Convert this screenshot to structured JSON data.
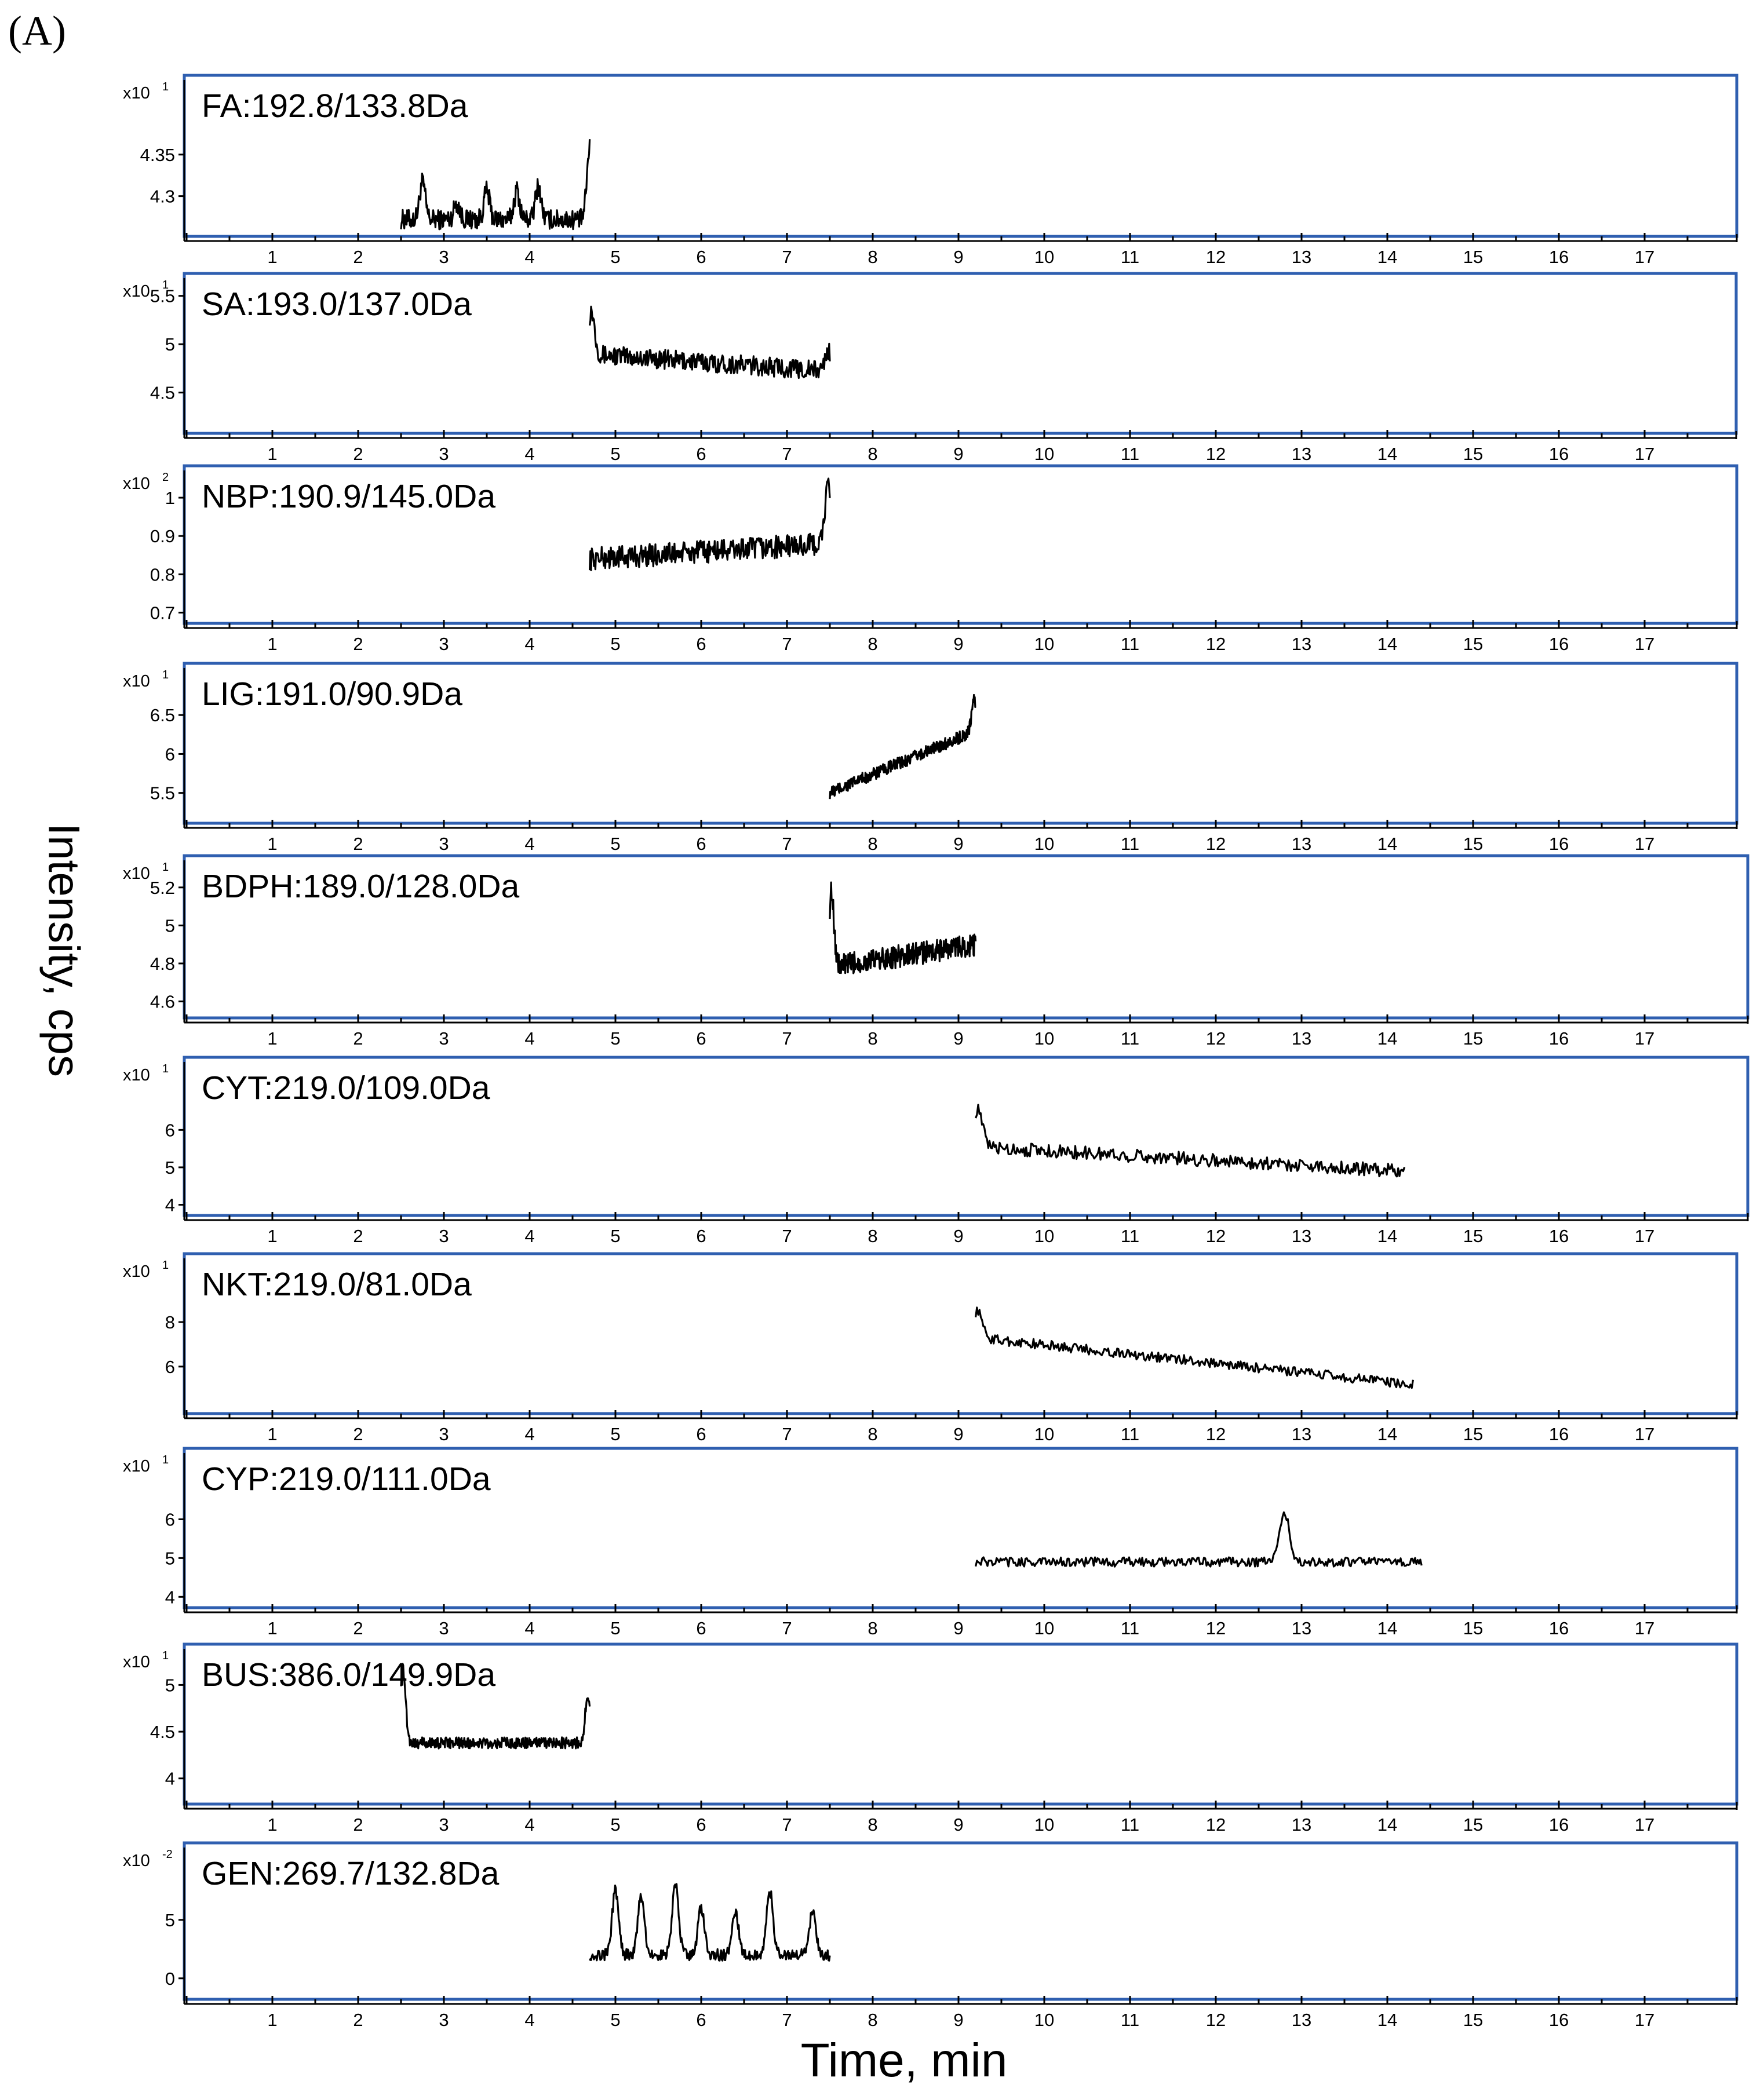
{
  "panel_label": "(A)",
  "y_axis_label": "Intensity, cps",
  "x_axis_label": "Time, min",
  "chart_data": [
    {
      "type": "line",
      "title": "FA:192.8/133.8Da",
      "scale_prefix": "x10",
      "scale_exp": "1",
      "ylim": [
        4.26,
        4.43
      ],
      "yticks": [
        "4.35",
        "4.3"
      ],
      "xlim": [
        0,
        18
      ],
      "xticks": [
        1,
        2,
        3,
        4,
        5,
        6,
        7,
        8,
        9,
        10,
        11,
        12,
        13,
        14,
        15,
        16,
        17
      ],
      "x_range": [
        2.5,
        4.7
      ],
      "baseline": 4.272,
      "noise": 0.012,
      "trend": 0,
      "peaks": [
        [
          2.75,
          0.045
        ],
        [
          3.15,
          0.02
        ],
        [
          3.5,
          0.035
        ],
        [
          3.85,
          0.035
        ],
        [
          4.1,
          0.04
        ],
        [
          4.7,
          0.085
        ]
      ]
    },
    {
      "type": "line",
      "title": "SA:193.0/137.0Da",
      "scale_prefix": "x10",
      "scale_exp": "1",
      "ylim": [
        4.15,
        5.6
      ],
      "yticks": [
        "5.5",
        "5",
        "4.5"
      ],
      "xlim": [
        0,
        18
      ],
      "xticks": [
        1,
        2,
        3,
        4,
        5,
        6,
        7,
        8,
        9,
        10,
        11,
        12,
        13,
        14,
        15,
        16,
        17
      ],
      "x_range": [
        4.7,
        7.5
      ],
      "baseline": 4.9,
      "noise": 0.1,
      "trend": -0.18,
      "peaks": [
        [
          4.72,
          0.45
        ],
        [
          7.48,
          0.2
        ]
      ]
    },
    {
      "type": "line",
      "title": "NBP:190.9/145.0Da",
      "scale_prefix": "x10",
      "scale_exp": "2",
      "ylim": [
        0.69,
        1.05
      ],
      "yticks": [
        "1",
        "0.9",
        "0.8",
        "0.7"
      ],
      "xlim": [
        0,
        18
      ],
      "xticks": [
        1,
        2,
        3,
        4,
        5,
        6,
        7,
        8,
        9,
        10,
        11,
        12,
        13,
        14,
        15,
        16,
        17
      ],
      "x_range": [
        4.7,
        7.5
      ],
      "baseline": 0.84,
      "noise": 0.03,
      "trend": 0.04,
      "peaks": [
        [
          7.48,
          0.15
        ]
      ]
    },
    {
      "type": "line",
      "title": "LIG:191.0/90.9Da",
      "scale_prefix": "x10",
      "scale_exp": "1",
      "ylim": [
        5.2,
        7.0
      ],
      "yticks": [
        "6.5",
        "6",
        "5.5"
      ],
      "xlim": [
        0,
        18
      ],
      "xticks": [
        1,
        2,
        3,
        4,
        5,
        6,
        7,
        8,
        9,
        10,
        11,
        12,
        13,
        14,
        15,
        16,
        17
      ],
      "x_range": [
        7.5,
        9.2
      ],
      "baseline": 5.5,
      "noise": 0.08,
      "trend": 0.8,
      "peaks": [
        [
          9.18,
          0.4
        ]
      ]
    },
    {
      "type": "line",
      "title": "BDPH:189.0/128.0Da",
      "scale_prefix": "x10",
      "scale_exp": "1",
      "ylim": [
        4.55,
        5.3
      ],
      "yticks": [
        "5.2",
        "5",
        "4.8",
        "4.6"
      ],
      "xlim": [
        0,
        18
      ],
      "xticks": [
        1,
        2,
        3,
        4,
        5,
        6,
        7,
        8,
        9,
        10,
        11,
        12,
        13,
        14,
        15,
        16,
        17
      ],
      "x_range": [
        7.5,
        9.2
      ],
      "baseline": 4.78,
      "noise": 0.06,
      "trend": 0.12,
      "peaks": [
        [
          7.52,
          0.4
        ]
      ]
    },
    {
      "type": "line",
      "title": "CYT:219.0/109.0Da",
      "scale_prefix": "x10",
      "scale_exp": "1",
      "ylim": [
        3.9,
        7.6
      ],
      "yticks": [
        "6",
        "5",
        "4"
      ],
      "xlim": [
        0,
        18
      ],
      "xticks": [
        1,
        2,
        3,
        4,
        5,
        6,
        7,
        8,
        9,
        10,
        11,
        12,
        13,
        14,
        15,
        16,
        17
      ],
      "x_range": [
        9.2,
        14.2
      ],
      "baseline": 5.55,
      "noise": 0.18,
      "trend": -0.65,
      "peaks": [
        [
          9.22,
          1.0
        ]
      ]
    },
    {
      "type": "line",
      "title": "NKT:219.0/81.0Da",
      "scale_prefix": "x10",
      "scale_exp": "1",
      "ylim": [
        4.2,
        10.5
      ],
      "yticks": [
        "8",
        "6"
      ],
      "xlim": [
        0,
        18
      ],
      "xticks": [
        1,
        2,
        3,
        4,
        5,
        6,
        7,
        8,
        9,
        10,
        11,
        12,
        13,
        14,
        15,
        16,
        17
      ],
      "x_range": [
        9.2,
        14.3
      ],
      "baseline": 7.3,
      "noise": 0.22,
      "trend": -2.1,
      "peaks": [
        [
          9.22,
          1.2
        ]
      ]
    },
    {
      "type": "line",
      "title": "CYP:219.0/111.0Da",
      "scale_prefix": "x10",
      "scale_exp": "1",
      "ylim": [
        3.9,
        7.5
      ],
      "yticks": [
        "6",
        "5",
        "4"
      ],
      "xlim": [
        0,
        18
      ],
      "xticks": [
        1,
        2,
        3,
        4,
        5,
        6,
        7,
        8,
        9,
        10,
        11,
        12,
        13,
        14,
        15,
        16,
        17
      ],
      "x_range": [
        9.2,
        14.4
      ],
      "baseline": 4.9,
      "noise": 0.12,
      "trend": 0,
      "peaks": [
        [
          12.8,
          1.25
        ]
      ]
    },
    {
      "type": "line",
      "title": "BUS:386.0/149.9Da",
      "scale_prefix": "x10",
      "scale_exp": "1",
      "ylim": [
        3.8,
        5.3
      ],
      "yticks": [
        "5",
        "4.5",
        "4"
      ],
      "xlim": [
        0,
        18
      ],
      "xticks": [
        1,
        2,
        3,
        4,
        5,
        6,
        7,
        8,
        9,
        10,
        11,
        12,
        13,
        14,
        15,
        16,
        17
      ],
      "x_range": [
        2.5,
        4.7
      ],
      "baseline": 4.38,
      "noise": 0.06,
      "trend": 0,
      "peaks": [
        [
          2.52,
          0.8
        ],
        [
          4.68,
          0.5
        ]
      ]
    },
    {
      "type": "line",
      "title": "GEN:269.7/132.8Da",
      "scale_prefix": "x10",
      "scale_exp": "-2",
      "ylim": [
        -1.2,
        10.5
      ],
      "yticks": [
        "5",
        "0"
      ],
      "xlim": [
        0,
        18
      ],
      "xticks": [
        1,
        2,
        3,
        4,
        5,
        6,
        7,
        8,
        9,
        10,
        11,
        12,
        13,
        14,
        15,
        16,
        17
      ],
      "x_range": [
        4.7,
        7.5
      ],
      "baseline": 2.0,
      "noise": 0.5,
      "trend": 0,
      "peaks": [
        [
          5.0,
          5.5
        ],
        [
          5.3,
          5.0
        ],
        [
          5.7,
          6.0
        ],
        [
          6.0,
          4.0
        ],
        [
          6.4,
          3.5
        ],
        [
          6.8,
          5.5
        ],
        [
          7.3,
          3.8
        ]
      ]
    }
  ]
}
